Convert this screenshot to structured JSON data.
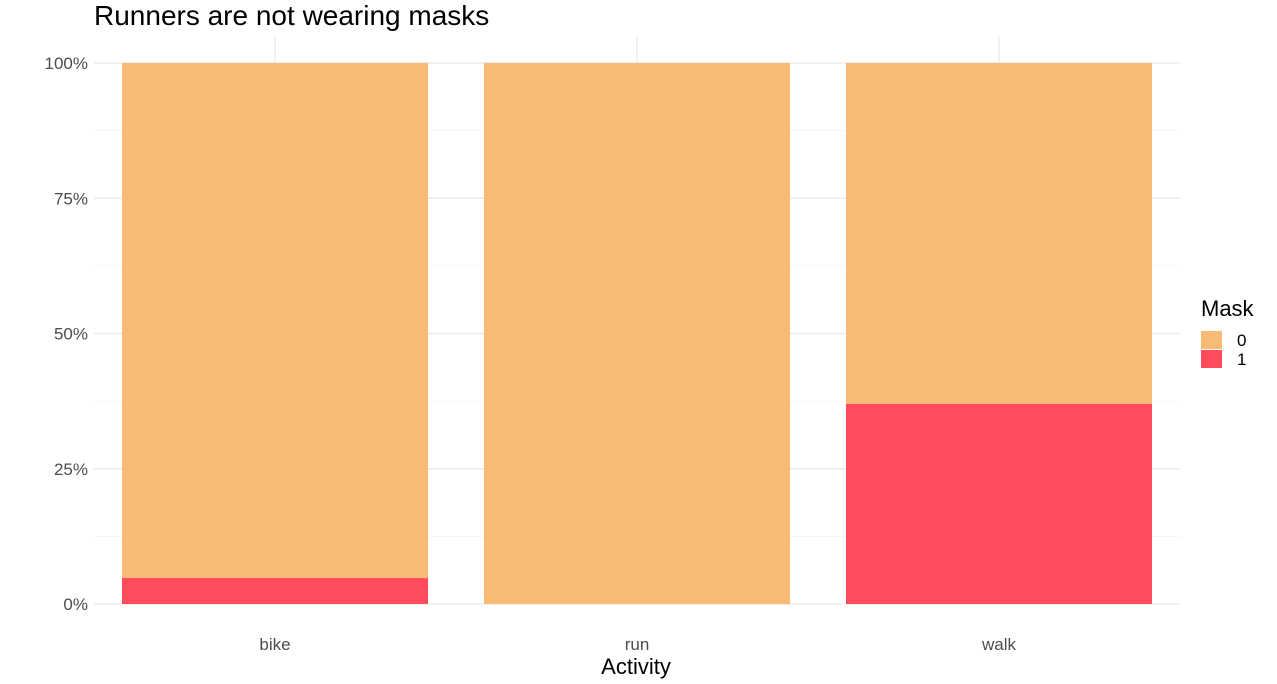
{
  "chart_data": {
    "type": "bar",
    "stacked": true,
    "position": "fill",
    "title": "Runners are not wearing masks",
    "xlabel": "Activity",
    "ylabel": "",
    "categories": [
      "bike",
      "run",
      "walk"
    ],
    "series": [
      {
        "name": "0",
        "values": [
          95.2,
          100,
          63
        ],
        "color": "#F8BA74"
      },
      {
        "name": "1",
        "values": [
          4.8,
          0,
          37
        ],
        "color": "#FF4B5C"
      }
    ],
    "ylim": [
      0,
      100
    ],
    "yticks": [
      0,
      25,
      50,
      75,
      100
    ],
    "ytick_labels": [
      "0%",
      "25%",
      "50%",
      "75%",
      "100%"
    ],
    "legend": {
      "title": "Mask",
      "placement": "right"
    },
    "grid": true
  }
}
